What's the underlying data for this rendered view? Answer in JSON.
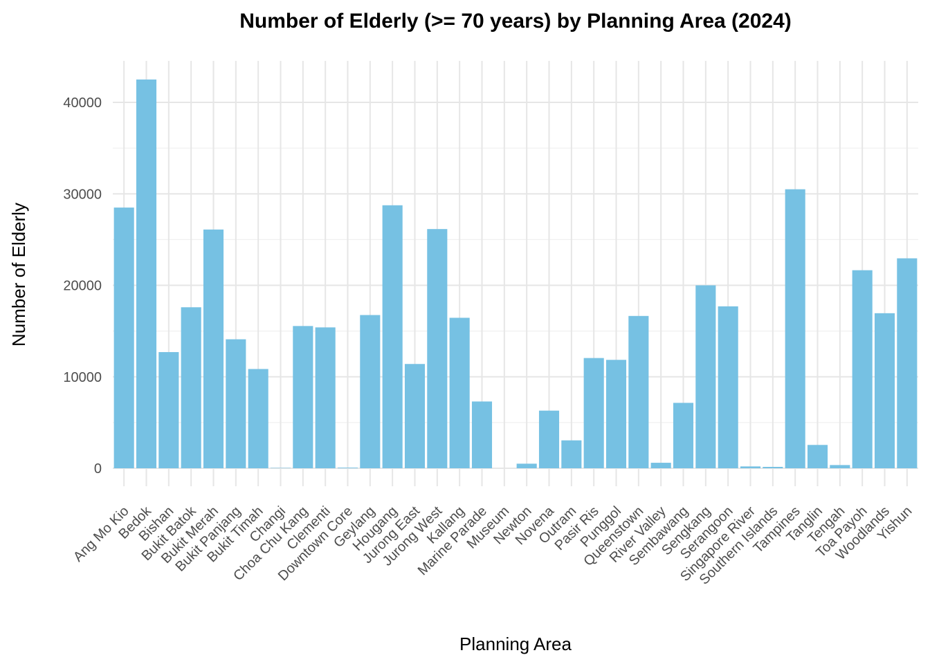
{
  "chart_data": {
    "type": "bar",
    "title": "Number of Elderly (>= 70 years) by Planning Area (2024)",
    "xlabel": "Planning Area",
    "ylabel": "Number of Elderly",
    "bar_color": "#76C1E3",
    "grid": true,
    "ylim": [
      0,
      45000
    ],
    "yticks": [
      0,
      10000,
      20000,
      30000,
      40000
    ],
    "ytick_labels": [
      "0",
      "10000",
      "20000",
      "30000",
      "40000"
    ],
    "categories": [
      "Ang Mo Kio",
      "Bedok",
      "Bishan",
      "Bukit Batok",
      "Bukit Merah",
      "Bukit Panjang",
      "Bukit Timah",
      "Changi",
      "Choa Chu Kang",
      "Clementi",
      "Downtown Core",
      "Geylang",
      "Hougang",
      "Jurong East",
      "Jurong West",
      "Kallang",
      "Marine Parade",
      "Museum",
      "Newton",
      "Novena",
      "Outram",
      "Pasir Ris",
      "Punggol",
      "Queenstown",
      "River Valley",
      "Sembawang",
      "Sengkang",
      "Serangoon",
      "Singapore River",
      "Southern Islands",
      "Tampines",
      "Tanglin",
      "Tengah",
      "Toa Payoh",
      "Woodlands",
      "Yishun"
    ],
    "values": [
      28500,
      42500,
      12700,
      17600,
      26100,
      14100,
      10850,
      40,
      15550,
      15400,
      70,
      16750,
      28750,
      11400,
      26150,
      16450,
      7300,
      0,
      500,
      6300,
      3050,
      12050,
      11850,
      16650,
      600,
      7150,
      20000,
      17700,
      200,
      150,
      30500,
      2550,
      350,
      21650,
      16950,
      22950
    ]
  }
}
